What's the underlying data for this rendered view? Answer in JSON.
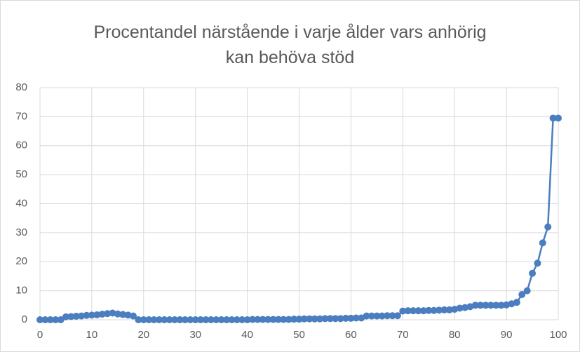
{
  "chart_data": {
    "type": "line",
    "title": "Procentandel närstående i varje ålder vars anhörig kan behöva stöd",
    "x": [
      0,
      1,
      2,
      3,
      4,
      5,
      6,
      7,
      8,
      9,
      10,
      11,
      12,
      13,
      14,
      15,
      16,
      17,
      18,
      19,
      20,
      21,
      22,
      23,
      24,
      25,
      26,
      27,
      28,
      29,
      30,
      31,
      32,
      33,
      34,
      35,
      36,
      37,
      38,
      39,
      40,
      41,
      42,
      43,
      44,
      45,
      46,
      47,
      48,
      49,
      50,
      51,
      52,
      53,
      54,
      55,
      56,
      57,
      58,
      59,
      60,
      61,
      62,
      63,
      64,
      65,
      66,
      67,
      68,
      69,
      70,
      71,
      72,
      73,
      74,
      75,
      76,
      77,
      78,
      79,
      80,
      81,
      82,
      83,
      84,
      85,
      86,
      87,
      88,
      89,
      90,
      91,
      92,
      93,
      94,
      95,
      96,
      97,
      98,
      99,
      100
    ],
    "series": [
      {
        "color": "#4a7ebf",
        "values": [
          0,
          0,
          0,
          0,
          0,
          1,
          1.1,
          1.2,
          1.3,
          1.5,
          1.6,
          1.7,
          1.9,
          2.1,
          2.3,
          2,
          1.8,
          1.6,
          1.3,
          0,
          0,
          0,
          0,
          0,
          0,
          0,
          0,
          0,
          0,
          0,
          0,
          0,
          0,
          0,
          0,
          0,
          0,
          0,
          0,
          0,
          0,
          0.1,
          0.1,
          0.1,
          0.1,
          0.1,
          0.1,
          0.1,
          0.1,
          0.2,
          0.2,
          0.3,
          0.3,
          0.3,
          0.3,
          0.4,
          0.4,
          0.4,
          0.4,
          0.5,
          0.5,
          0.6,
          0.6,
          1.3,
          1.3,
          1.3,
          1.3,
          1.4,
          1.4,
          1.4,
          3,
          3.1,
          3.1,
          3.1,
          3.1,
          3.2,
          3.2,
          3.3,
          3.4,
          3.4,
          3.6,
          4,
          4.2,
          4.5,
          5,
          5,
          5,
          5,
          5,
          5,
          5.1,
          5.5,
          6,
          8.7,
          10,
          16,
          19.5,
          26.5,
          32,
          69.5,
          69.5
        ]
      }
    ],
    "xlim": [
      0,
      100
    ],
    "xticks": [
      0,
      10,
      20,
      30,
      40,
      50,
      60,
      70,
      80,
      90,
      100
    ],
    "ylim": [
      0,
      80
    ],
    "yticks": [
      0,
      10,
      20,
      30,
      40,
      50,
      60,
      70,
      80
    ],
    "grid": true
  }
}
